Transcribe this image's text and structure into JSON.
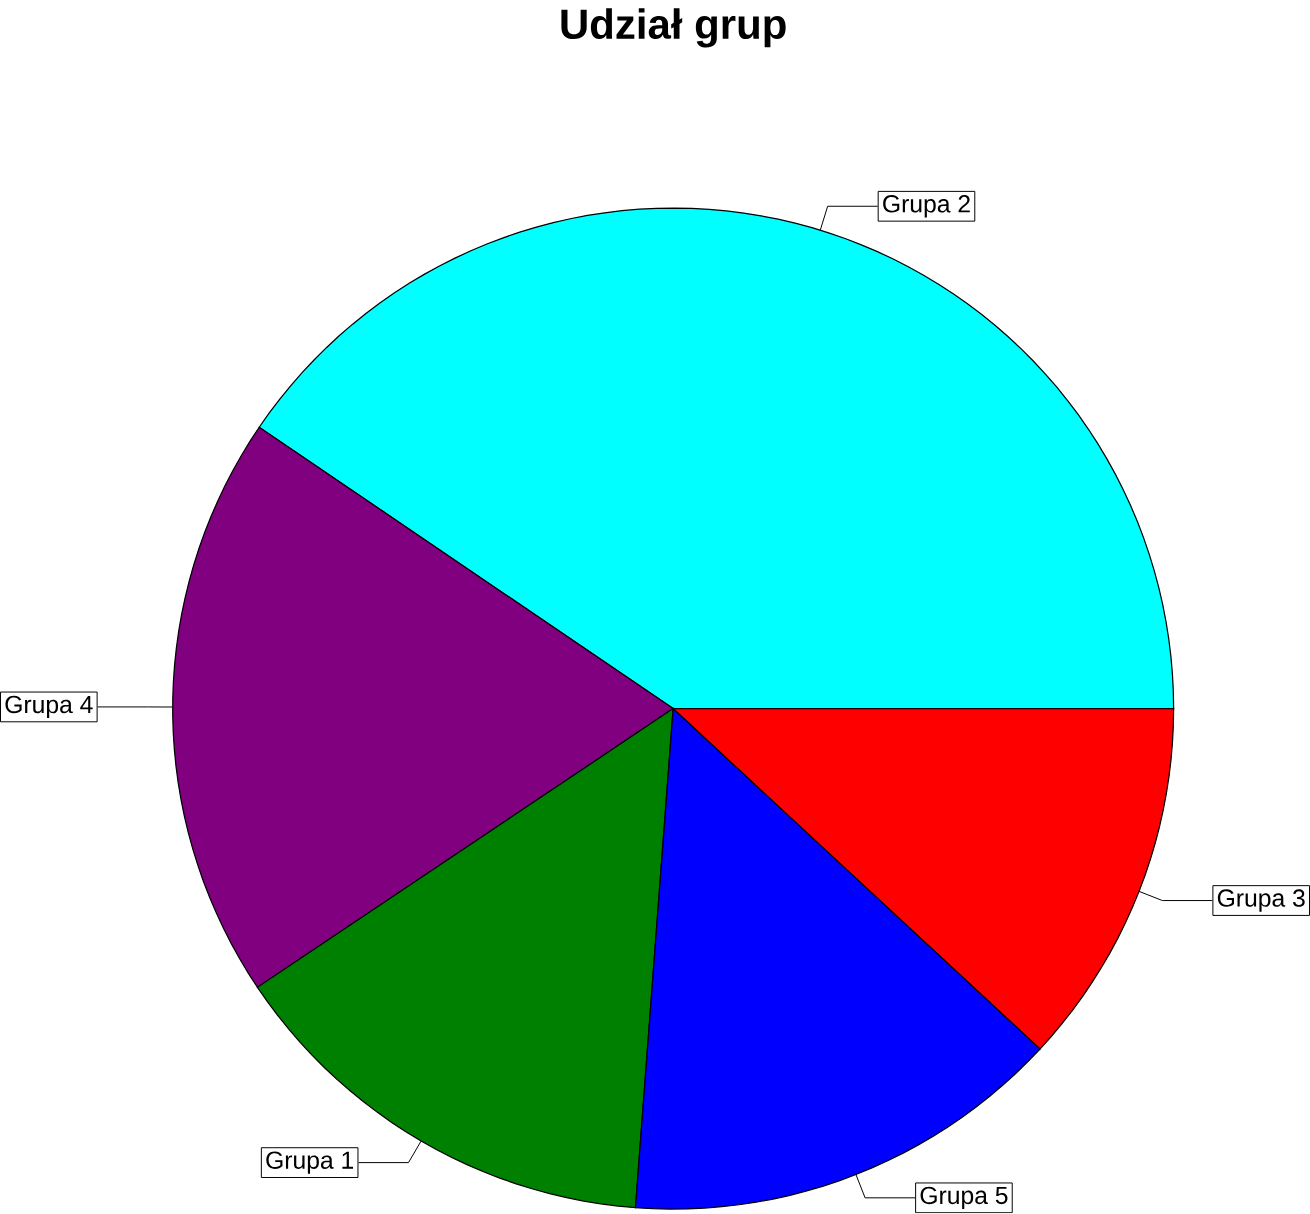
{
  "chart_data": {
    "type": "pie",
    "title": "Udział grup",
    "categories": [
      "Grupa 2",
      "Grupa 4",
      "Grupa 1",
      "Grupa 5",
      "Grupa 3"
    ],
    "values": [
      40.5,
      18.9,
      14.4,
      14.3,
      11.9
    ],
    "colors": [
      "#00ffff",
      "#800080",
      "#008000",
      "#0000ff",
      "#ff0000"
    ]
  }
}
